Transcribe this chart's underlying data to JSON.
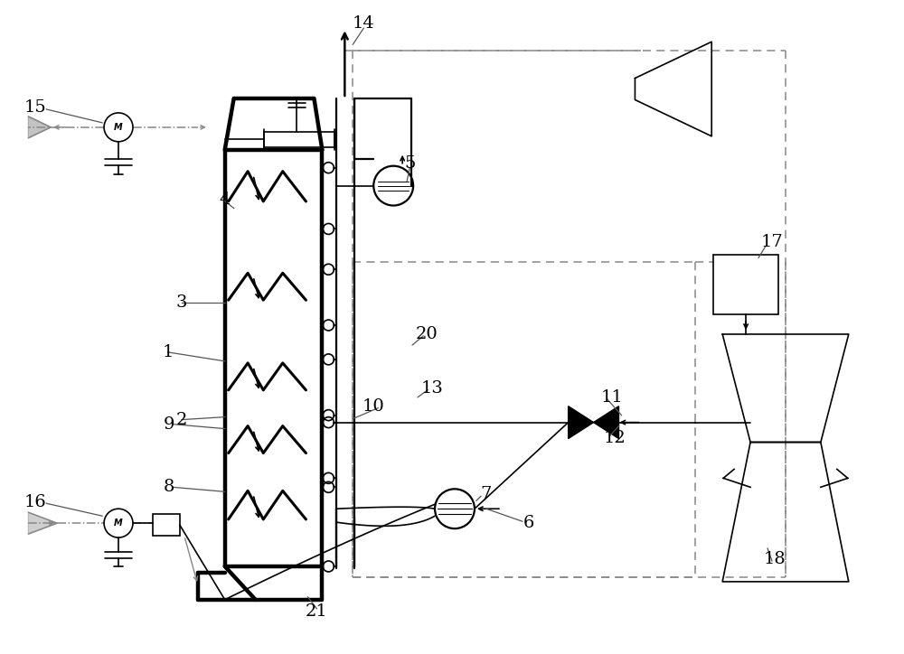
{
  "bg": "#ffffff",
  "black": "#000000",
  "gray": "#888888",
  "lw_thick": 3.2,
  "lw_med": 1.6,
  "lw_thin": 1.2,
  "lw_dash": 1.1
}
